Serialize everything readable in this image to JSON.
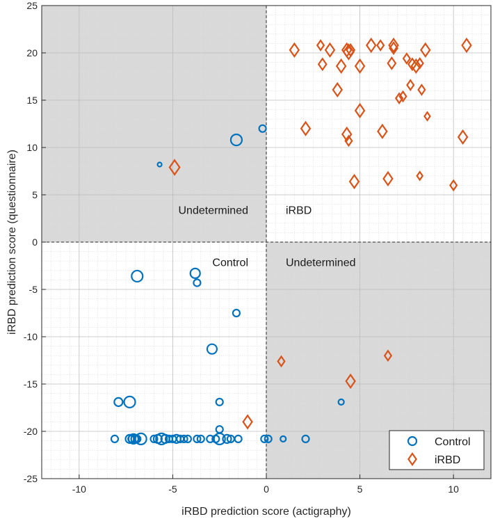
{
  "chart_data": {
    "type": "scatter",
    "title": "",
    "xlabel": "iRBD prediction score (actigraphy)",
    "ylabel": "iRBD prediction score (questionnaire)",
    "xlim": [
      -12,
      12
    ],
    "ylim": [
      -25,
      25
    ],
    "xticks": [
      -10,
      -5,
      0,
      5,
      10
    ],
    "yticks": [
      -25,
      -20,
      -15,
      -10,
      -5,
      0,
      5,
      10,
      15,
      20,
      25
    ],
    "grid": "minor",
    "quadrant_labels": {
      "upper_left": "Undetermined",
      "upper_right": "iRBD",
      "lower_left": "Control",
      "lower_right": "Undetermined"
    },
    "legend_position": "bottom-right",
    "colors": {
      "control": "#0072BD",
      "irbd": "#D95319",
      "shade": "#d9d9d9"
    },
    "series": [
      {
        "name": "Control",
        "marker": "circle",
        "points": [
          [
            -5.7,
            8.2,
            3
          ],
          [
            -1.6,
            10.8,
            8
          ],
          [
            -0.2,
            12.0,
            5
          ],
          [
            -6.9,
            -3.6,
            8
          ],
          [
            -3.8,
            -3.3,
            7
          ],
          [
            -3.7,
            -4.3,
            5
          ],
          [
            -1.6,
            -7.5,
            5
          ],
          [
            -2.9,
            -11.3,
            7
          ],
          [
            -7.9,
            -16.9,
            6
          ],
          [
            -7.3,
            -16.9,
            8
          ],
          [
            -2.5,
            -16.9,
            5
          ],
          [
            -2.5,
            -19.8,
            5
          ],
          [
            4.0,
            -16.9,
            4
          ],
          [
            -8.1,
            -20.8,
            5
          ],
          [
            -7.3,
            -20.8,
            6
          ],
          [
            -7.2,
            -20.8,
            5
          ],
          [
            -7.1,
            -20.8,
            7
          ],
          [
            -7.0,
            -20.8,
            6
          ],
          [
            -6.9,
            -20.8,
            5
          ],
          [
            -6.7,
            -20.8,
            8
          ],
          [
            -6.0,
            -20.8,
            5
          ],
          [
            -5.8,
            -20.8,
            6
          ],
          [
            -5.6,
            -20.8,
            8
          ],
          [
            -5.4,
            -20.8,
            6
          ],
          [
            -5.2,
            -20.8,
            5
          ],
          [
            -5.0,
            -20.8,
            5
          ],
          [
            -4.8,
            -20.8,
            6
          ],
          [
            -4.6,
            -20.8,
            5
          ],
          [
            -4.4,
            -20.8,
            5
          ],
          [
            -4.2,
            -20.8,
            5
          ],
          [
            -3.7,
            -20.8,
            5
          ],
          [
            -3.5,
            -20.8,
            5
          ],
          [
            -3.0,
            -20.8,
            5
          ],
          [
            -2.7,
            -20.8,
            5
          ],
          [
            -2.5,
            -20.8,
            8
          ],
          [
            -2.1,
            -20.8,
            6
          ],
          [
            -1.9,
            -20.8,
            5
          ],
          [
            -1.5,
            -20.8,
            5
          ],
          [
            -0.1,
            -20.8,
            5
          ],
          [
            0.1,
            -20.8,
            5
          ],
          [
            0.9,
            -20.8,
            4
          ],
          [
            2.1,
            -20.8,
            5
          ]
        ]
      },
      {
        "name": "iRBD",
        "marker": "diamond",
        "points": [
          [
            -4.9,
            7.9,
            9
          ],
          [
            1.5,
            20.3,
            8
          ],
          [
            2.9,
            20.8,
            6
          ],
          [
            3.4,
            20.3,
            8
          ],
          [
            4.3,
            20.3,
            8
          ],
          [
            4.4,
            20.1,
            9
          ],
          [
            4.5,
            20.3,
            7
          ],
          [
            5.6,
            20.8,
            8
          ],
          [
            6.1,
            20.8,
            6
          ],
          [
            6.8,
            20.8,
            8
          ],
          [
            6.8,
            20.5,
            7
          ],
          [
            7.5,
            19.4,
            6
          ],
          [
            7.8,
            18.8,
            7
          ],
          [
            8.0,
            18.6,
            8
          ],
          [
            8.2,
            18.9,
            6
          ],
          [
            8.5,
            20.3,
            8
          ],
          [
            10.7,
            20.8,
            8
          ],
          [
            3.0,
            18.8,
            7
          ],
          [
            4.0,
            18.6,
            8
          ],
          [
            5.0,
            18.6,
            8
          ],
          [
            6.7,
            18.9,
            7
          ],
          [
            3.8,
            16.1,
            8
          ],
          [
            7.7,
            16.6,
            6
          ],
          [
            8.3,
            16.1,
            6
          ],
          [
            7.1,
            15.2,
            6
          ],
          [
            7.3,
            15.4,
            6
          ],
          [
            5.0,
            13.9,
            8
          ],
          [
            8.6,
            13.3,
            5
          ],
          [
            2.1,
            12.0,
            8
          ],
          [
            4.3,
            11.4,
            8
          ],
          [
            4.4,
            10.7,
            6
          ],
          [
            6.2,
            11.7,
            8
          ],
          [
            10.5,
            11.1,
            8
          ],
          [
            4.7,
            6.4,
            8
          ],
          [
            6.5,
            6.7,
            8
          ],
          [
            8.2,
            7.0,
            5
          ],
          [
            10.0,
            6.0,
            6
          ],
          [
            -1.0,
            -19.0,
            8
          ],
          [
            0.8,
            -12.6,
            6
          ],
          [
            4.5,
            -14.7,
            8
          ],
          [
            6.5,
            -12.0,
            6
          ]
        ]
      }
    ]
  }
}
